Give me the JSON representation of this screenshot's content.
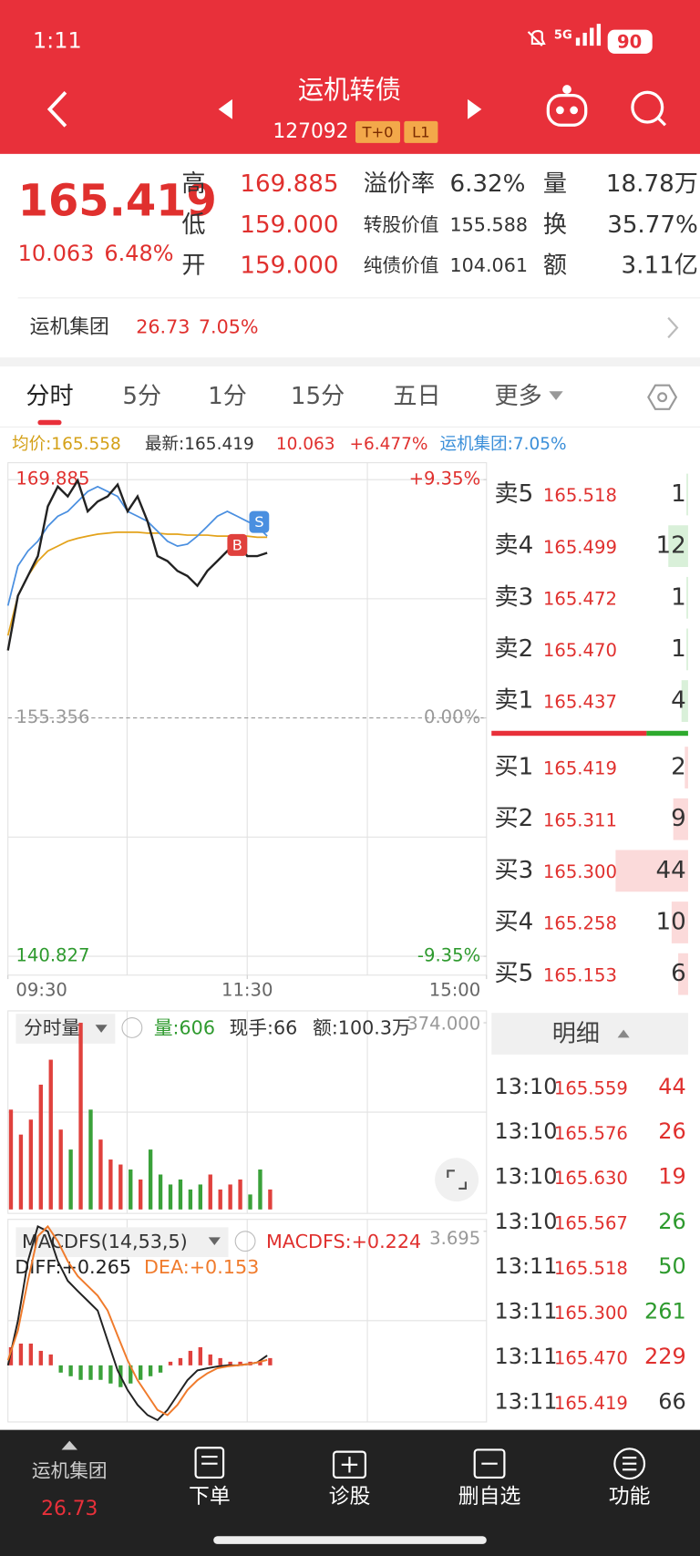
{
  "status_bar": {
    "time": "1:11",
    "network": "5G",
    "battery": "90"
  },
  "header": {
    "title": "运机转债",
    "code": "127092",
    "tags": [
      "T+0",
      "L1"
    ]
  },
  "quote": {
    "price": "165.419",
    "change": "10.063",
    "change_pct": "6.48%",
    "col1": [
      {
        "label": "高",
        "value": "169.885"
      },
      {
        "label": "低",
        "value": "159.000"
      },
      {
        "label": "开",
        "value": "159.000"
      }
    ],
    "col2": [
      {
        "label": "溢价率",
        "value": "6.32%"
      },
      {
        "label": "转股价值",
        "value": "155.588"
      },
      {
        "label": "纯债价值",
        "value": "104.061"
      }
    ],
    "col3": [
      {
        "label": "量",
        "value": "18.78万"
      },
      {
        "label": "换",
        "value": "35.77%"
      },
      {
        "label": "额",
        "value": "3.11亿"
      }
    ]
  },
  "related": {
    "name": "运机集团",
    "price": "26.73",
    "change_pct": "7.05%"
  },
  "tabs": [
    "分时",
    "5分",
    "1分",
    "15分",
    "五日",
    "更多"
  ],
  "info": {
    "avg": "均价:165.558",
    "latest": "最新:165.419",
    "change": "10.063",
    "change_pct": "+6.477%",
    "stock": "运机集团:7.05%"
  },
  "chart_data": [
    {
      "type": "line",
      "xlim": [
        0,
        240
      ],
      "xticks": [
        {
          "value": 0,
          "label": "09:30"
        },
        {
          "value": 120,
          "label": "11:30"
        },
        {
          "value": 240,
          "label": "15:00"
        }
      ],
      "ylim": [
        140.827,
        169.885
      ],
      "yticks": [
        169.885,
        155.356,
        140.827
      ],
      "y2lim": [
        -9.35,
        9.35
      ],
      "y2ticks": [
        {
          "value": 9.35,
          "label": "+9.35%"
        },
        {
          "value": 0,
          "label": "0.00%"
        },
        {
          "value": -9.35,
          "label": "-9.35%"
        }
      ],
      "x": [
        0,
        5,
        10,
        15,
        20,
        25,
        30,
        35,
        40,
        45,
        50,
        55,
        60,
        65,
        70,
        75,
        80,
        85,
        90,
        95,
        100,
        105,
        110,
        115,
        120,
        125,
        130
      ],
      "series": [
        {
          "color": "#e3a21a",
          "values": [
            160.38,
            162.8,
            164.01,
            164.92,
            165.53,
            165.83,
            166.13,
            166.31,
            166.44,
            166.56,
            166.62,
            166.68,
            166.68,
            166.68,
            166.62,
            166.62,
            166.56,
            166.56,
            166.5,
            166.5,
            166.5,
            166.44,
            166.44,
            166.44,
            166.44,
            166.37,
            166.37
          ]
        },
        {
          "color": "#4a8fe0",
          "values": [
            162.2,
            164.62,
            165.53,
            166.13,
            167.04,
            167.65,
            167.95,
            168.55,
            169.16,
            169.46,
            169.16,
            168.86,
            167.95,
            167.65,
            167.34,
            166.74,
            166.13,
            165.83,
            165.95,
            166.44,
            167.04,
            167.65,
            167.95,
            167.65,
            167.34,
            167.04,
            166.44
          ]
        },
        {
          "color": "#222222",
          "values": [
            159.47,
            162.8,
            164.01,
            165.22,
            168.25,
            169.46,
            168.86,
            169.83,
            167.95,
            168.55,
            168.86,
            169.58,
            167.95,
            168.86,
            167.34,
            165.22,
            164.92,
            164.32,
            164.01,
            163.41,
            164.32,
            164.92,
            165.53,
            166.13,
            165.22,
            165.22,
            165.42
          ]
        }
      ],
      "annotations": [
        {
          "text": "B",
          "x": 115,
          "y": 165.9,
          "color": "#e0413d"
        },
        {
          "text": "S",
          "x": 126,
          "y": 167.3,
          "color": "#4a8fe0"
        }
      ]
    },
    {
      "type": "bar",
      "title": "分时量",
      "stats": [
        "量:606",
        "现手:66",
        "额:100.3万"
      ],
      "xlim": [
        0,
        240
      ],
      "ylim": [
        0,
        374
      ],
      "yticks": [
        {
          "value": 374,
          "label": "374.000"
        }
      ],
      "x": [
        0,
        5,
        10,
        15,
        20,
        25,
        30,
        35,
        40,
        45,
        50,
        55,
        60,
        65,
        70,
        75,
        80,
        85,
        90,
        95,
        100,
        105,
        110,
        115,
        120,
        125,
        130
      ],
      "values": [
        200,
        150,
        180,
        250,
        300,
        160,
        120,
        374,
        200,
        140,
        100,
        90,
        80,
        60,
        120,
        70,
        50,
        60,
        40,
        50,
        70,
        40,
        50,
        60,
        30,
        80,
        40
      ],
      "colors": [
        "#e0413d",
        "#e0413d",
        "#e0413d",
        "#e0413d",
        "#e0413d",
        "#e0413d",
        "#3aa13a",
        "#e0413d",
        "#3aa13a",
        "#e0413d",
        "#e0413d",
        "#e0413d",
        "#3aa13a",
        "#e0413d",
        "#3aa13a",
        "#3aa13a",
        "#3aa13a",
        "#3aa13a",
        "#3aa13a",
        "#3aa13a",
        "#e0413d",
        "#e0413d",
        "#e0413d",
        "#e0413d",
        "#3aa13a",
        "#3aa13a",
        "#e0413d"
      ]
    },
    {
      "type": "macd",
      "title": "MACDFS(14,53,5)",
      "value_label": "MACDFS:+0.224",
      "xlim": [
        0,
        240
      ],
      "ylim": [
        -1.56,
        3.695
      ],
      "yticks": [
        {
          "value": 3.695,
          "label": "3.695"
        }
      ],
      "x": [
        0,
        5,
        10,
        15,
        20,
        25,
        30,
        35,
        40,
        45,
        50,
        55,
        60,
        65,
        70,
        75,
        80,
        85,
        90,
        95,
        100,
        105,
        110,
        115,
        120,
        125,
        130
      ],
      "series": [
        {
          "name": "DIFF:+0.265",
          "color": "#222222",
          "values": [
            0,
            1.23,
            2.87,
            3.83,
            3.69,
            2.87,
            2.33,
            2.05,
            1.78,
            1.51,
            0.68,
            -0.14,
            -0.68,
            -1.09,
            -1.37,
            -1.51,
            -1.23,
            -0.82,
            -0.41,
            -0.14,
            -0.08,
            -0.03,
            0,
            0,
            0.03,
            0.08,
            0.27
          ]
        },
        {
          "name": "DEA:+0.153",
          "color": "#f07b2c",
          "values": [
            0.14,
            0.96,
            2.33,
            3.56,
            3.83,
            3.42,
            2.87,
            2.46,
            2.19,
            1.92,
            1.51,
            0.82,
            0.14,
            -0.41,
            -0.82,
            -1.23,
            -1.37,
            -1.09,
            -0.68,
            -0.41,
            -0.22,
            -0.08,
            -0.03,
            0,
            0.03,
            0.08,
            0.15
          ]
        }
      ],
      "histogram": {
        "values": [
          0.5,
          0.6,
          0.6,
          0.4,
          0.3,
          -0.2,
          -0.3,
          -0.4,
          -0.4,
          -0.4,
          -0.5,
          -0.6,
          -0.5,
          -0.4,
          -0.3,
          -0.2,
          0.1,
          0.2,
          0.4,
          0.5,
          0.3,
          0.2,
          0.1,
          0.1,
          0.1,
          0.1,
          0.2
        ],
        "up_color": "#e0413d",
        "down_color": "#3aa13a"
      }
    }
  ],
  "order_book": {
    "asks": [
      {
        "label": "卖5",
        "price": "165.518",
        "qty": 1
      },
      {
        "label": "卖4",
        "price": "165.499",
        "qty": 12
      },
      {
        "label": "卖3",
        "price": "165.472",
        "qty": 1
      },
      {
        "label": "卖2",
        "price": "165.470",
        "qty": 1
      },
      {
        "label": "卖1",
        "price": "165.437",
        "qty": 4
      }
    ],
    "bids": [
      {
        "label": "买1",
        "price": "165.419",
        "qty": 2
      },
      {
        "label": "买2",
        "price": "165.311",
        "qty": 9
      },
      {
        "label": "买3",
        "price": "165.300",
        "qty": 44
      },
      {
        "label": "买4",
        "price": "165.258",
        "qty": 10
      },
      {
        "label": "买5",
        "price": "165.153",
        "qty": 6
      }
    ]
  },
  "trades": {
    "title": "明细",
    "rows": [
      {
        "time": "13:10",
        "price": "165.559",
        "qty": 44,
        "color": "#e0302e"
      },
      {
        "time": "13:10",
        "price": "165.576",
        "qty": 26,
        "color": "#e0302e"
      },
      {
        "time": "13:10",
        "price": "165.630",
        "qty": 19,
        "color": "#e0302e"
      },
      {
        "time": "13:10",
        "price": "165.567",
        "qty": 26,
        "color": "#2e9a2e"
      },
      {
        "time": "13:11",
        "price": "165.518",
        "qty": 50,
        "color": "#2e9a2e"
      },
      {
        "time": "13:11",
        "price": "165.300",
        "qty": 261,
        "color": "#2e9a2e"
      },
      {
        "time": "13:11",
        "price": "165.470",
        "qty": 229,
        "color": "#e0302e"
      },
      {
        "time": "13:11",
        "price": "165.419",
        "qty": 66,
        "color": "#333333"
      }
    ]
  },
  "bottom_nav": {
    "stock": {
      "name": "运机集团",
      "price": "26.73"
    },
    "items": [
      "下单",
      "诊股",
      "删自选",
      "功能"
    ]
  }
}
